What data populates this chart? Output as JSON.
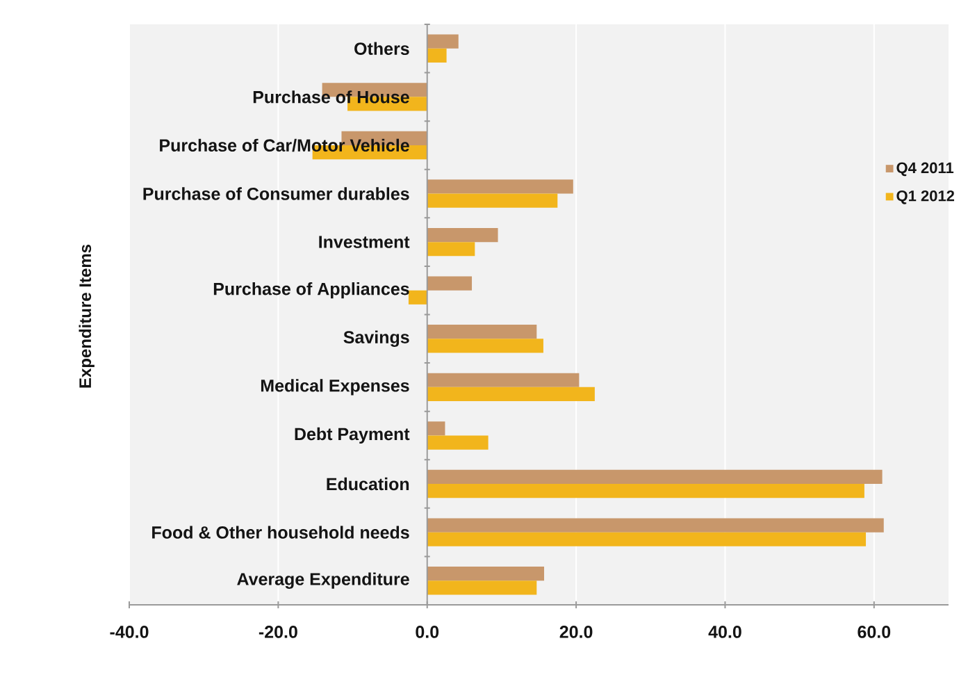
{
  "chart_data": {
    "type": "bar",
    "orientation": "horizontal",
    "ylabel": "Expenditure Items",
    "categories": [
      "Others",
      "Purchase of House",
      "Purchase of Car/Motor Vehicle",
      "Purchase of Consumer durables",
      "Investment",
      "Purchase of Appliances",
      "Savings",
      "Medical Expenses",
      "Debt Payment",
      "Education",
      "Food & Other household needs",
      "Average Expenditure"
    ],
    "series": [
      {
        "name": "Q4 2011",
        "color": "#c8976b",
        "values": [
          4.2,
          -14.1,
          -11.5,
          19.6,
          9.5,
          6.0,
          14.7,
          20.4,
          2.4,
          61.1,
          61.3,
          15.7
        ]
      },
      {
        "name": "Q1 2012",
        "color": "#f2b51c",
        "values": [
          2.6,
          -10.7,
          -15.4,
          17.5,
          6.4,
          -2.5,
          15.6,
          22.5,
          8.2,
          58.7,
          58.9,
          14.7
        ]
      }
    ],
    "xlim": [
      -40,
      70
    ],
    "xticks": [
      {
        "value": -40,
        "label": "-40.0"
      },
      {
        "value": -20,
        "label": "-20.0"
      },
      {
        "value": 0,
        "label": "0.0"
      },
      {
        "value": 20,
        "label": "20.0"
      },
      {
        "value": 40,
        "label": "40.0"
      },
      {
        "value": 60,
        "label": "60.0"
      }
    ],
    "grid": "x",
    "legend": "right"
  }
}
